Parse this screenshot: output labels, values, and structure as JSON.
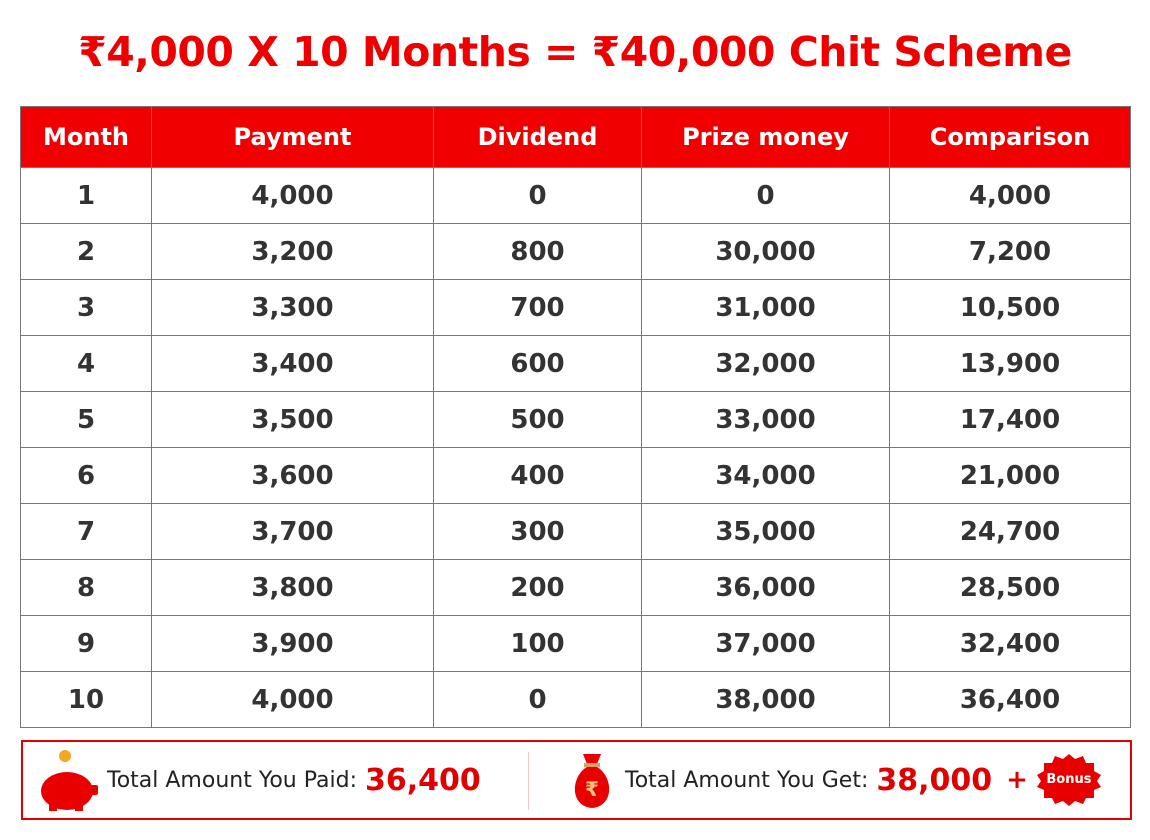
{
  "title": "₹4,000 X 10 Months = ₹40,000 Chit Scheme",
  "table": {
    "headers": [
      "Month",
      "Payment",
      "Dividend",
      "Prize money",
      "Comparison"
    ],
    "rows": [
      [
        "1",
        "4,000",
        "0",
        "0",
        "4,000"
      ],
      [
        "2",
        "3,200",
        "800",
        "30,000",
        "7,200"
      ],
      [
        "3",
        "3,300",
        "700",
        "31,000",
        "10,500"
      ],
      [
        "4",
        "3,400",
        "600",
        "32,000",
        "13,900"
      ],
      [
        "5",
        "3,500",
        "500",
        "33,000",
        "17,400"
      ],
      [
        "6",
        "3,600",
        "400",
        "34,000",
        "21,000"
      ],
      [
        "7",
        "3,700",
        "300",
        "35,000",
        "24,700"
      ],
      [
        "8",
        "3,800",
        "200",
        "36,000",
        "28,500"
      ],
      [
        "9",
        "3,900",
        "100",
        "37,000",
        "32,400"
      ],
      [
        "10",
        "4,000",
        "0",
        "38,000",
        "36,400"
      ]
    ]
  },
  "footer": {
    "paid_label": "Total Amount You Paid:",
    "paid_value": "36,400",
    "get_label": "Total Amount You Get:",
    "get_value": "38,000",
    "plus": "+",
    "bonus": "Bonus",
    "icons": [
      "piggy-bank-icon",
      "money-bag-icon",
      "bonus-badge-icon"
    ]
  },
  "colors": {
    "accent": "#f00000",
    "text": "#333333"
  }
}
